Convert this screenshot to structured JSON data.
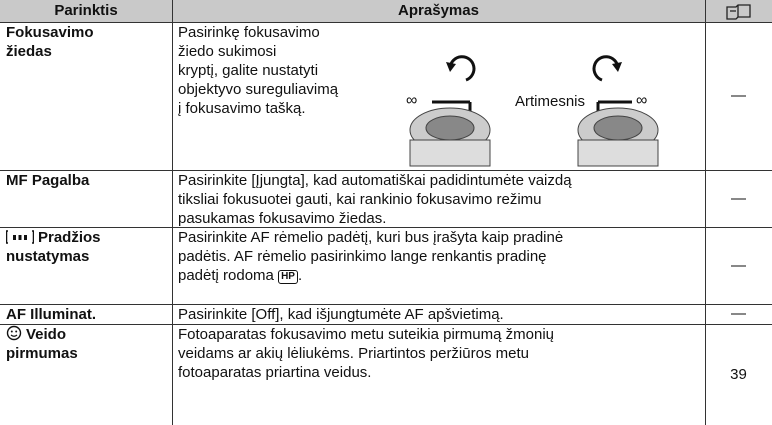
{
  "table": {
    "header": [
      "Parinktis",
      "Aprašymas"
    ],
    "rows": [
      {
        "name": [
          "Fokusavimo",
          "žiedas"
        ],
        "description": [
          "Pasirinkę fokusavimo",
          "žiedo sukimosi",
          "kryptį, galite nustatyti",
          "objektyvo sureguliavimą",
          "į fokusavimo tašką."
        ],
        "ref": "—"
      },
      {
        "name": [
          "MF Pagalba"
        ],
        "description": [
          "Pasirinkite [Įjungta], kad automatiškai padidintumėte vaizdą",
          "tiksliai fokusuotei gauti, kai rankinio fokusavimo režimu",
          "pasukamas fokusavimo žiedas."
        ],
        "ref": "—"
      },
      {
        "name": [
          "Pradžios",
          "nustatymas"
        ],
        "description": [
          "Pasirinkite AF rėmelio padėtį, kuri bus įrašyta kaip pradinė",
          "padėtis. AF rėmelio pasirinkimo lange renkantis pradinę",
          "padėtį rodoma"
        ],
        "icon_text": "HP",
        "description_end": ".",
        "ref": "—"
      },
      {
        "name": [
          "AF Illuminat."
        ],
        "description": [
          "Pasirinkite [Off], kad išjungtumėte AF apšvietimą."
        ],
        "ref": "—"
      },
      {
        "name": [
          "Veido",
          "pirmumas"
        ],
        "description": [
          "Fotoaparatas fokusavimo metu suteikia pirmumą žmonių",
          "veidams ar akių lėliukėms. Priartintos peržiūros metu",
          "fotoaparatas priartina veidus."
        ],
        "ref": "39"
      }
    ]
  },
  "illustration": {
    "left_symbol": "∞",
    "label": "Artimesnis",
    "right_symbol": "∞"
  }
}
